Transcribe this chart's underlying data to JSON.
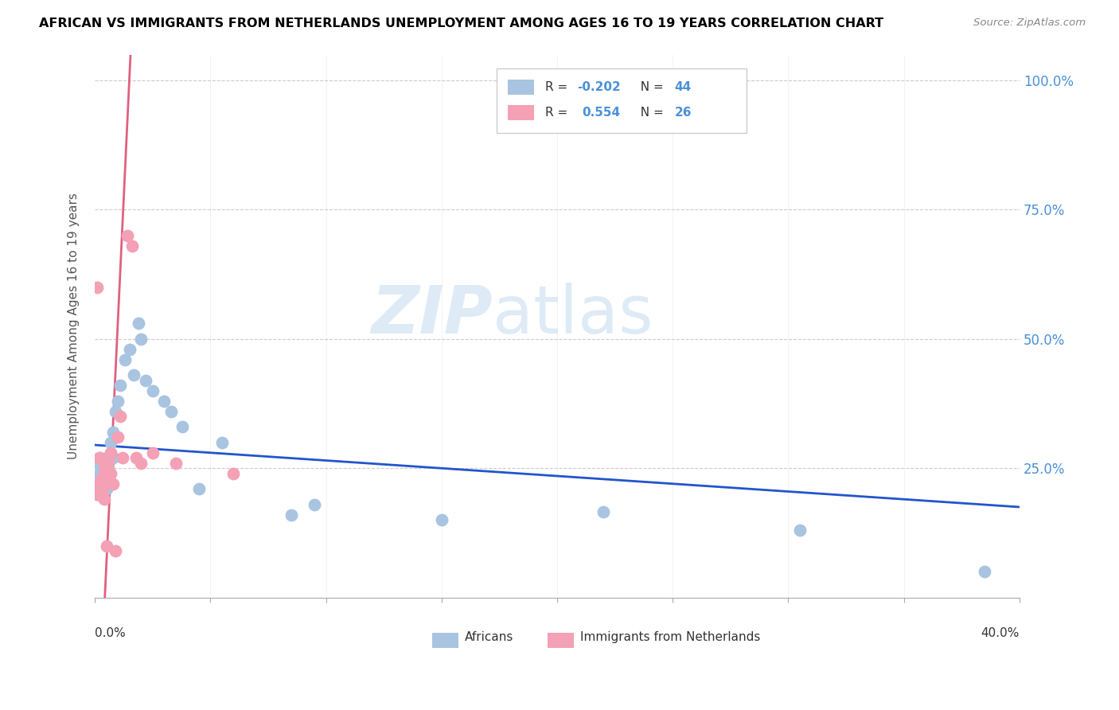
{
  "title": "AFRICAN VS IMMIGRANTS FROM NETHERLANDS UNEMPLOYMENT AMONG AGES 16 TO 19 YEARS CORRELATION CHART",
  "source": "Source: ZipAtlas.com",
  "ylabel": "Unemployment Among Ages 16 to 19 years",
  "ytick_labels": [
    "",
    "25.0%",
    "50.0%",
    "75.0%",
    "100.0%"
  ],
  "xmin": 0.0,
  "xmax": 0.4,
  "ymin": 0.0,
  "ymax": 1.05,
  "blue_color": "#a8c4e0",
  "pink_color": "#f4a0b5",
  "blue_line_color": "#2255cc",
  "pink_line_color": "#e06080",
  "watermark_zip": "ZIP",
  "watermark_atlas": "atlas",
  "africans_x": [
    0.001,
    0.001,
    0.001,
    0.002,
    0.002,
    0.002,
    0.002,
    0.003,
    0.003,
    0.003,
    0.003,
    0.004,
    0.004,
    0.004,
    0.005,
    0.005,
    0.005,
    0.006,
    0.006,
    0.007,
    0.007,
    0.008,
    0.008,
    0.009,
    0.01,
    0.011,
    0.013,
    0.015,
    0.017,
    0.019,
    0.02,
    0.022,
    0.025,
    0.03,
    0.033,
    0.038,
    0.045,
    0.055,
    0.085,
    0.095,
    0.15,
    0.22,
    0.305,
    0.385
  ],
  "africans_y": [
    0.2,
    0.23,
    0.26,
    0.21,
    0.24,
    0.22,
    0.27,
    0.2,
    0.22,
    0.25,
    0.24,
    0.23,
    0.22,
    0.26,
    0.21,
    0.24,
    0.27,
    0.23,
    0.25,
    0.28,
    0.3,
    0.27,
    0.32,
    0.36,
    0.38,
    0.41,
    0.46,
    0.48,
    0.43,
    0.53,
    0.5,
    0.42,
    0.4,
    0.38,
    0.36,
    0.33,
    0.21,
    0.3,
    0.16,
    0.18,
    0.15,
    0.165,
    0.13,
    0.05
  ],
  "netherlands_x": [
    0.001,
    0.001,
    0.001,
    0.002,
    0.002,
    0.003,
    0.003,
    0.004,
    0.004,
    0.005,
    0.005,
    0.006,
    0.007,
    0.007,
    0.008,
    0.009,
    0.01,
    0.011,
    0.012,
    0.014,
    0.016,
    0.018,
    0.02,
    0.025,
    0.035,
    0.06
  ],
  "netherlands_y": [
    0.2,
    0.22,
    0.6,
    0.21,
    0.27,
    0.2,
    0.23,
    0.19,
    0.25,
    0.22,
    0.1,
    0.26,
    0.24,
    0.28,
    0.22,
    0.09,
    0.31,
    0.35,
    0.27,
    0.7,
    0.68,
    0.27,
    0.26,
    0.28,
    0.26,
    0.24
  ]
}
